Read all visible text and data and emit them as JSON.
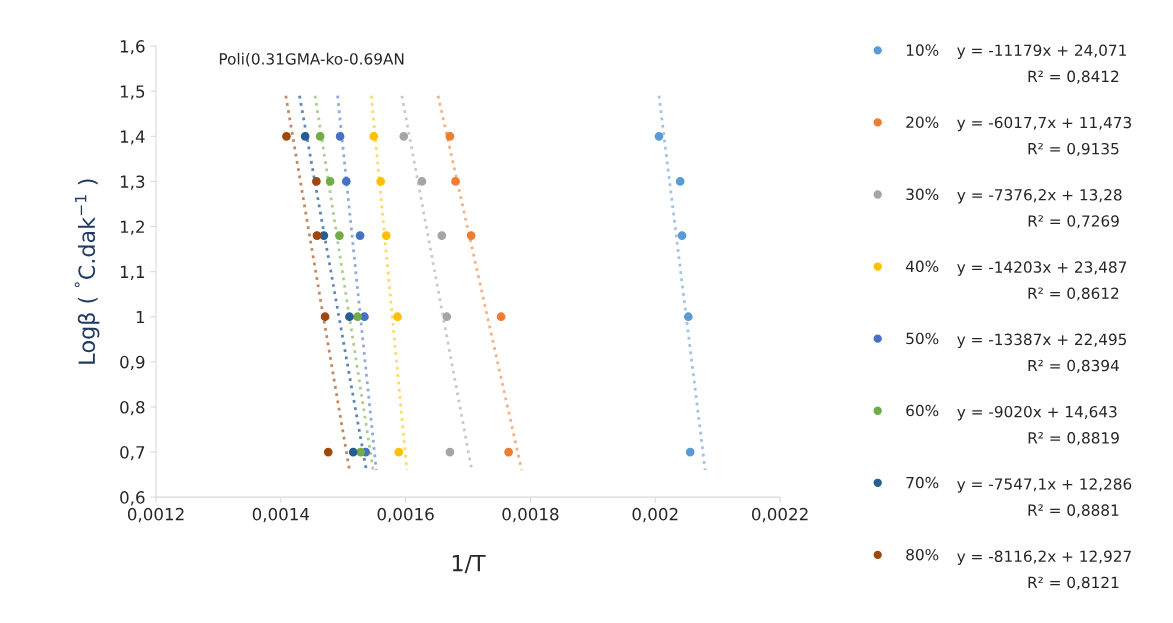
{
  "chart_data": {
    "type": "scatter",
    "title": "Poli(0.31GMA-ko-0.69AN",
    "xlabel": "1/T",
    "ylabel": "Logβ ( $^{°}$C.dak$^{−1}$ )",
    "xlim": [
      0.0012,
      0.0022
    ],
    "xticks": [
      {
        "value": 0.0012,
        "label": "0,0012"
      },
      {
        "value": 0.0014,
        "label": "0,0014"
      },
      {
        "value": 0.0016,
        "label": "0,0016"
      },
      {
        "value": 0.0018,
        "label": "0,0018"
      },
      {
        "value": 0.002,
        "label": "0,002"
      },
      {
        "value": 0.0022,
        "label": "0,0022"
      }
    ],
    "ylim": [
      0.6,
      1.6
    ],
    "yticks": [
      {
        "value": 0.6,
        "label": "0,6"
      },
      {
        "value": 0.7,
        "label": "0,7"
      },
      {
        "value": 0.8,
        "label": "0,8"
      },
      {
        "value": 0.9,
        "label": "0,9"
      },
      1,
      {
        "value": 1.1,
        "label": "1,1"
      },
      {
        "value": 1.2,
        "label": "1,2"
      },
      {
        "value": 1.3,
        "label": "1,3"
      },
      {
        "value": 1.4,
        "label": "1,4"
      },
      {
        "value": 1.5,
        "label": "1,5"
      },
      {
        "value": 1.6,
        "label": "1,6"
      }
    ],
    "grid": false,
    "legend": "right",
    "marker": "circle",
    "series": [
      {
        "name": "10%",
        "color": "#5b9bd5",
        "x": [
          0.002006,
          0.00204,
          0.002043,
          0.002053,
          0.002056
        ],
        "values": [
          1.4,
          1.3,
          1.18,
          1.0,
          0.7
        ]
      },
      {
        "name": "20%",
        "color": "#ed7d31",
        "x": [
          0.001671,
          0.00168,
          0.001705,
          0.001753,
          0.001765
        ],
        "values": [
          1.4,
          1.3,
          1.18,
          1.0,
          0.7
        ]
      },
      {
        "name": "30%",
        "color": "#a5a5a5",
        "x": [
          0.001597,
          0.001626,
          0.001658,
          0.001666,
          0.001671
        ],
        "values": [
          1.4,
          1.3,
          1.18,
          1.0,
          0.7
        ]
      },
      {
        "name": "40%",
        "color": "#ffc000",
        "x": [
          0.001549,
          0.00156,
          0.001569,
          0.001587,
          0.001589
        ],
        "values": [
          1.4,
          1.3,
          1.18,
          1.0,
          0.7
        ]
      },
      {
        "name": "50%",
        "color": "#4472c4",
        "x": [
          0.001495,
          0.001505,
          0.001527,
          0.001534,
          0.001536
        ],
        "values": [
          1.4,
          1.3,
          1.18,
          1.0,
          0.7
        ]
      },
      {
        "name": "60%",
        "color": "#70ad47",
        "x": [
          0.001463,
          0.001479,
          0.001494,
          0.001523,
          0.001528
        ],
        "values": [
          1.4,
          1.3,
          1.18,
          1.0,
          0.7
        ]
      },
      {
        "name": "70%",
        "color": "#255e91",
        "x": [
          0.001439,
          0.001455,
          0.001469,
          0.00151,
          0.001516
        ],
        "values": [
          1.4,
          null,
          1.18,
          1.0,
          0.7
        ]
      },
      {
        "name": "80%",
        "color": "#9e480e",
        "x": [
          0.001409,
          0.001457,
          0.001458,
          0.001471,
          0.001476
        ],
        "values": [
          1.4,
          1.3,
          1.18,
          1.0,
          0.7
        ]
      },
      {
        "type": "line",
        "line_style": "dotted",
        "marker": "none",
        "color": "#9dc3e6",
        "x": [
          0.002006,
          0.00208
        ],
        "values": [
          1.49,
          0.66
        ]
      },
      {
        "type": "line",
        "line_style": "dotted",
        "marker": "none",
        "color": "#f4b183",
        "x": [
          0.001652,
          0.001786
        ],
        "values": [
          1.49,
          0.66
        ]
      },
      {
        "type": "line",
        "line_style": "dotted",
        "marker": "none",
        "color": "#c9c9c9",
        "x": [
          0.001594,
          0.001706
        ],
        "values": [
          1.49,
          0.66
        ]
      },
      {
        "type": "line",
        "line_style": "dotted",
        "marker": "none",
        "color": "#ffd966",
        "x": [
          0.001545,
          0.001602
        ],
        "values": [
          1.49,
          0.66
        ]
      },
      {
        "type": "line",
        "line_style": "dotted",
        "marker": "none",
        "color": "#8faadc",
        "x": [
          0.001491,
          0.001553
        ],
        "values": [
          1.49,
          0.66
        ]
      },
      {
        "type": "line",
        "line_style": "dotted",
        "marker": "none",
        "color": "#a9d18e",
        "x": [
          0.001455,
          0.001548
        ],
        "values": [
          1.49,
          0.66
        ]
      },
      {
        "type": "line",
        "line_style": "dotted",
        "marker": "none",
        "color": "#5b87b8",
        "x": [
          0.00143,
          0.001537
        ],
        "values": [
          1.49,
          0.66
        ]
      },
      {
        "type": "line",
        "line_style": "dotted",
        "marker": "none",
        "color": "#c5865f",
        "x": [
          0.001408,
          0.00151
        ],
        "values": [
          1.49,
          0.66
        ]
      }
    ],
    "annotations": [
      "y = -11179x + 24,071",
      "R² = 0,8412",
      "y = -6017,7x + 11,473",
      "R² = 0,9135",
      "y = -7376,2x + 13,28",
      "R² = 0,7269",
      "y = -14203x + 23,487",
      "R² = 0,8612",
      "y = -13387x + 22,495",
      "R² = 0,8394",
      "y = -9020x + 14,643",
      "R² = 0,8819",
      "y = -7547,1x + 12,286",
      "R² = 0,8881",
      "y = -8116,2x + 12,927",
      "R² = 0,8121"
    ]
  }
}
